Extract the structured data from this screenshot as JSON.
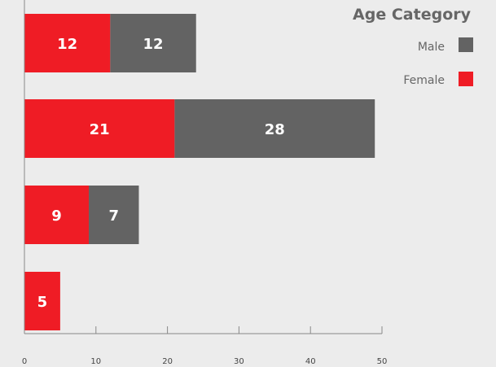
{
  "chart_data": {
    "type": "bar",
    "orientation": "horizontal",
    "stacked": true,
    "legend_title": "Age Category",
    "legend_position": "top-right",
    "categories": [
      "",
      "",
      "",
      ""
    ],
    "series": [
      {
        "name": "Female",
        "color": "#ef1c25",
        "values": [
          12,
          21,
          9,
          5
        ]
      },
      {
        "name": "Male",
        "color": "#636363",
        "values": [
          12,
          28,
          7,
          0
        ]
      }
    ],
    "xlim": [
      0,
      50
    ],
    "x_ticks": [
      0,
      10,
      20,
      30,
      40,
      50
    ],
    "grid": false
  },
  "legend": {
    "title": "Age Category",
    "items": [
      {
        "label": "Male",
        "color": "#636363"
      },
      {
        "label": "Female",
        "color": "#ef1c25"
      }
    ]
  }
}
